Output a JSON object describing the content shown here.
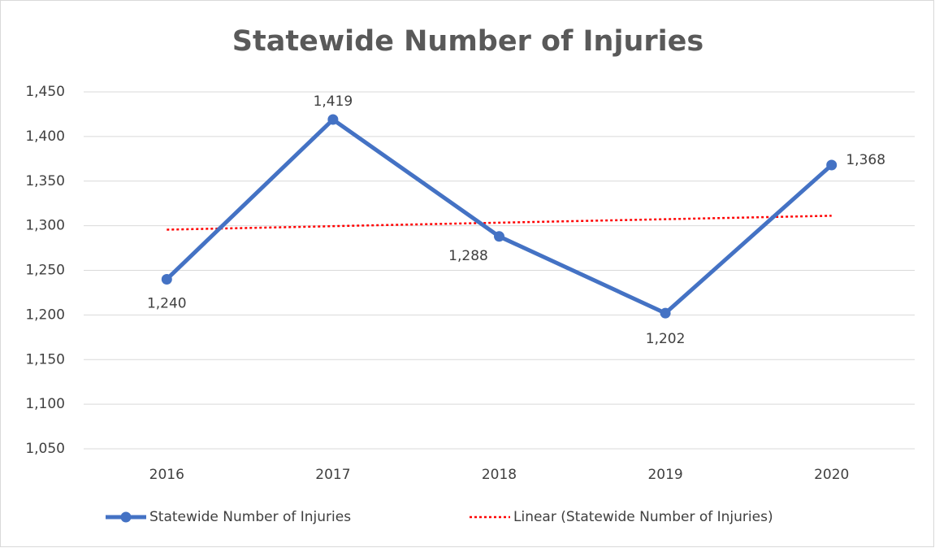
{
  "chart_data": {
    "type": "line",
    "title": "Statewide Number of Injuries",
    "categories": [
      "2016",
      "2017",
      "2018",
      "2019",
      "2020"
    ],
    "series": [
      {
        "name": "Statewide Number of Injuries",
        "color": "#4472c4",
        "style": "solid",
        "markers": true,
        "values": [
          1240,
          1419,
          1288,
          1202,
          1368
        ],
        "value_labels": [
          "1,240",
          "1,419",
          "1,288",
          "1,202",
          "1,368"
        ]
      },
      {
        "name": "Linear (Statewide Number of Injuries)",
        "color": "#ff0000",
        "style": "dotted",
        "markers": false,
        "values": [
          1295.6,
          1299.5,
          1303.4,
          1307.3,
          1311.2
        ]
      }
    ],
    "ylim": [
      1050,
      1450
    ],
    "yticks": [
      {
        "value": 1050,
        "label": "1,050"
      },
      {
        "value": 1100,
        "label": "1,100"
      },
      {
        "value": 1150,
        "label": "1,150"
      },
      {
        "value": 1200,
        "label": "1,200"
      },
      {
        "value": 1250,
        "label": "1,250"
      },
      {
        "value": 1300,
        "label": "1,300"
      },
      {
        "value": 1350,
        "label": "1,350"
      },
      {
        "value": 1400,
        "label": "1,400"
      },
      {
        "value": 1450,
        "label": "1,450"
      }
    ],
    "grid": true,
    "legend": "bottom"
  }
}
